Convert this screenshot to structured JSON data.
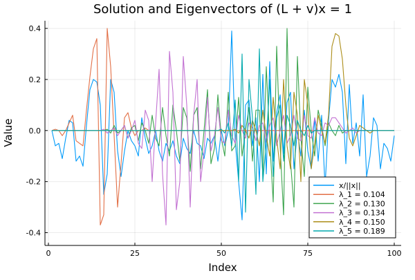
{
  "chart_data": {
    "type": "line",
    "title": "Solution and Eigenvectors of (L + v)x = 1",
    "xlabel": "Index",
    "ylabel": "Value",
    "xlim": [
      -1,
      102
    ],
    "ylim": [
      -0.45,
      0.43
    ],
    "xticks": [
      0,
      25,
      50,
      75,
      100
    ],
    "yticks": [
      -0.4,
      -0.2,
      0.0,
      0.2,
      0.4
    ],
    "xtick_labels": [
      "0",
      "25",
      "50",
      "75",
      "100"
    ],
    "ytick_labels": [
      "-0.4",
      "-0.2",
      "0.0",
      "0.2",
      "0.4"
    ],
    "grid": true,
    "legend_position": "bottom-right",
    "x": [
      1,
      2,
      3,
      4,
      5,
      6,
      7,
      8,
      9,
      10,
      11,
      12,
      13,
      14,
      15,
      16,
      17,
      18,
      19,
      20,
      21,
      22,
      23,
      24,
      25,
      26,
      27,
      28,
      29,
      30,
      31,
      32,
      33,
      34,
      35,
      36,
      37,
      38,
      39,
      40,
      41,
      42,
      43,
      44,
      45,
      46,
      47,
      48,
      49,
      50,
      51,
      52,
      53,
      54,
      55,
      56,
      57,
      58,
      59,
      60,
      61,
      62,
      63,
      64,
      65,
      66,
      67,
      68,
      69,
      70,
      71,
      72,
      73,
      74,
      75,
      76,
      77,
      78,
      79,
      80,
      81,
      82,
      83,
      84,
      85,
      86,
      87,
      88,
      89,
      90,
      91,
      92,
      93,
      94,
      95,
      96,
      97,
      98,
      99,
      100
    ],
    "series": [
      {
        "name": "x/||x||",
        "color": "#009AFA",
        "values": [
          0.0,
          -0.06,
          -0.05,
          -0.11,
          -0.03,
          0.04,
          0.03,
          -0.12,
          -0.1,
          -0.14,
          0.02,
          0.16,
          0.2,
          0.19,
          0.1,
          -0.25,
          -0.17,
          0.2,
          0.15,
          -0.08,
          -0.18,
          -0.08,
          0.0,
          -0.04,
          -0.06,
          -0.1,
          0.05,
          -0.03,
          -0.09,
          -0.06,
          0.0,
          -0.08,
          -0.12,
          -0.05,
          -0.08,
          -0.04,
          -0.1,
          -0.13,
          -0.03,
          -0.07,
          -0.09,
          0.0,
          -0.05,
          -0.06,
          -0.11,
          -0.03,
          -0.05,
          -0.02,
          -0.12,
          0.0,
          -0.06,
          0.0,
          0.39,
          -0.04,
          -0.2,
          -0.35,
          0.1,
          0.12,
          -0.06,
          0.05,
          -0.2,
          0.22,
          -0.17,
          0.27,
          -0.12,
          0.07,
          0.14,
          -0.09,
          0.11,
          0.15,
          -0.15,
          0.0,
          -0.1,
          0.08,
          -0.08,
          -0.15,
          0.05,
          -0.12,
          0.06,
          -0.22,
          0.04,
          0.2,
          0.17,
          0.22,
          0.15,
          -0.13,
          0.18,
          -0.05,
          0.03,
          -0.1,
          0.14,
          -0.18,
          -0.1,
          0.05,
          0.02,
          -0.15,
          -0.05,
          -0.07,
          -0.12,
          -0.02
        ]
      },
      {
        "name": "λ_1 = 0.104",
        "color": "#E26F46",
        "values": [
          0.0,
          0.005,
          0.0,
          -0.02,
          0.0,
          0.03,
          0.06,
          -0.04,
          -0.05,
          -0.06,
          0.08,
          0.21,
          0.32,
          0.36,
          -0.37,
          -0.33,
          0.4,
          0.25,
          -0.02,
          -0.3,
          -0.13,
          0.05,
          0.07,
          0.01,
          -0.02,
          0.0,
          0.0,
          0.01,
          0.0,
          0.0,
          0.0,
          0.0,
          0.0,
          0.0,
          0.0,
          0.0,
          0.0,
          0.0,
          0.0,
          0.0,
          0.0,
          0.0,
          0.0,
          0.0,
          0.0,
          0.0,
          0.0,
          0.0,
          0.0,
          0.0,
          0.0,
          0.0,
          0.0,
          0.0,
          0.0,
          0.0,
          0.0,
          0.0,
          0.0,
          0.0,
          0.0,
          0.0,
          0.0,
          0.0,
          0.0,
          0.0,
          0.0,
          0.0,
          0.0,
          0.0,
          0.0,
          0.0,
          0.0,
          0.0,
          0.0,
          0.0,
          0.0,
          0.0,
          0.0,
          0.0,
          0.0,
          0.0,
          0.0,
          0.0,
          0.0,
          0.0,
          0.0,
          0.0,
          0.0,
          0.0,
          0.0,
          0.0,
          0.0,
          0.0,
          0.0,
          0.0,
          0.0,
          0.0,
          0.0,
          0.0
        ]
      },
      {
        "name": "λ_2 = 0.130",
        "color": "#3DA44E",
        "values": [
          0.0,
          0.0,
          0.0,
          0.0,
          0.0,
          0.0,
          0.0,
          0.0,
          0.0,
          0.0,
          0.0,
          0.0,
          0.0,
          0.0,
          0.0,
          0.0,
          0.005,
          -0.01,
          0.02,
          -0.01,
          0.0,
          0.02,
          -0.03,
          0.01,
          0.02,
          -0.04,
          0.03,
          0.0,
          -0.05,
          0.06,
          -0.03,
          -0.06,
          0.09,
          -0.02,
          -0.1,
          0.1,
          0.0,
          -0.12,
          0.09,
          0.05,
          -0.16,
          0.06,
          0.09,
          -0.15,
          0.0,
          0.16,
          -0.13,
          -0.07,
          0.14,
          -0.03,
          -0.1,
          0.15,
          -0.08,
          -0.06,
          0.13,
          -0.1,
          0.0,
          0.09,
          -0.12,
          0.08,
          0.08,
          -0.18,
          0.25,
          -0.04,
          -0.28,
          0.33,
          -0.06,
          -0.33,
          0.4,
          -0.12,
          -0.3,
          0.29,
          -0.03,
          -0.18,
          0.17,
          0.0,
          -0.1,
          0.08,
          0.02,
          -0.06,
          0.03,
          0.0,
          -0.02,
          0.02,
          -0.01,
          0.0,
          0.0,
          0.0,
          0.0,
          0.0,
          0.0,
          0.0,
          0.0,
          0.0,
          0.0,
          0.0,
          0.0,
          0.0,
          0.0,
          0.0
        ]
      },
      {
        "name": "λ_3 = 0.134",
        "color": "#C271D2",
        "values": [
          0.0,
          0.0,
          0.0,
          0.0,
          0.0,
          0.0,
          0.0,
          0.0,
          0.0,
          0.0,
          0.0,
          0.0,
          0.0,
          0.0,
          0.0,
          0.005,
          -0.01,
          0.0,
          0.01,
          -0.02,
          0.0,
          0.02,
          -0.03,
          0.0,
          0.04,
          -0.05,
          -0.07,
          0.08,
          0.04,
          -0.2,
          0.03,
          0.24,
          -0.17,
          -0.37,
          0.31,
          0.15,
          -0.31,
          -0.2,
          0.29,
          0.1,
          -0.3,
          0.06,
          0.2,
          -0.2,
          -0.08,
          0.13,
          -0.08,
          -0.02,
          0.09,
          -0.04,
          -0.05,
          0.08,
          -0.02,
          -0.05,
          0.06,
          0.0,
          -0.03,
          0.03,
          0.01,
          -0.04,
          0.02,
          0.03,
          -0.05,
          0.02,
          0.05,
          -0.06,
          0.0,
          0.06,
          -0.05,
          -0.02,
          0.06,
          -0.03,
          -0.04,
          0.06,
          -0.02,
          -0.03,
          0.05,
          -0.01,
          -0.02,
          0.03,
          0.02,
          0.05,
          0.05,
          0.03,
          0.01,
          -0.01,
          0.0,
          0.01,
          -0.01,
          0.0,
          0.0,
          0.0,
          0.0,
          0.0,
          0.0,
          0.0,
          0.0,
          0.0,
          0.0,
          0.0
        ]
      },
      {
        "name": "λ_4 = 0.150",
        "color": "#AC8D18",
        "values": [
          0.0,
          0.0,
          0.0,
          0.0,
          0.0,
          0.0,
          0.0,
          0.0,
          0.0,
          0.0,
          0.0,
          0.0,
          0.0,
          0.0,
          0.0,
          0.0,
          0.0,
          0.0,
          0.0,
          0.0,
          0.0,
          0.0,
          0.0,
          0.0,
          0.0,
          0.0,
          0.0,
          0.0,
          0.0,
          0.0,
          0.0,
          0.0,
          0.0,
          0.0,
          0.0,
          0.0,
          0.0,
          0.0,
          0.0,
          0.0,
          0.0,
          0.0,
          0.0,
          0.0,
          0.0,
          0.0,
          0.0,
          0.0,
          0.0,
          0.0,
          0.0,
          0.0,
          0.0,
          0.005,
          -0.01,
          0.02,
          0.0,
          -0.03,
          0.04,
          0.0,
          -0.06,
          0.08,
          -0.02,
          -0.1,
          0.13,
          -0.03,
          -0.15,
          0.2,
          -0.06,
          -0.15,
          0.15,
          0.06,
          -0.2,
          0.2,
          0.1,
          -0.15,
          -0.05,
          0.06,
          0.0,
          -0.05,
          0.06,
          0.33,
          0.38,
          0.37,
          0.28,
          0.1,
          -0.03,
          -0.06,
          -0.02,
          0.02,
          0.01,
          0.0,
          -0.01,
          0.0,
          0.0,
          0.0,
          0.0,
          0.0,
          0.0,
          0.0
        ]
      },
      {
        "name": "λ_5 = 0.189",
        "color": "#00A9AD",
        "values": [
          0.0,
          0.0,
          0.0,
          0.0,
          0.0,
          0.0,
          0.0,
          0.0,
          0.0,
          0.0,
          0.0,
          0.0,
          0.0,
          0.0,
          0.0,
          0.0,
          0.0,
          0.0,
          0.0,
          0.0,
          0.0,
          0.0,
          0.0,
          0.0,
          0.0,
          0.0,
          0.0,
          0.0,
          0.0,
          0.0,
          0.0,
          0.0,
          0.0,
          0.0,
          0.0,
          0.0,
          0.0,
          0.0,
          0.0,
          0.0,
          0.0,
          0.0,
          0.0,
          0.0,
          0.0,
          0.0,
          0.0,
          0.0,
          0.0,
          0.005,
          -0.01,
          0.03,
          -0.06,
          0.12,
          -0.2,
          0.3,
          -0.32,
          0.2,
          0.05,
          -0.25,
          0.32,
          -0.2,
          -0.05,
          0.2,
          -0.18,
          0.05,
          0.1,
          -0.12,
          0.06,
          0.02,
          -0.06,
          0.04,
          0.0,
          -0.02,
          0.02,
          -0.01,
          0.0,
          0.0,
          0.0,
          0.0,
          0.0,
          0.0,
          0.0,
          0.0,
          0.0,
          0.0,
          0.0,
          0.0,
          0.0,
          0.0,
          0.0,
          0.0,
          0.0,
          0.0,
          0.0,
          0.0,
          0.0,
          0.0,
          0.0,
          0.0
        ]
      }
    ]
  }
}
